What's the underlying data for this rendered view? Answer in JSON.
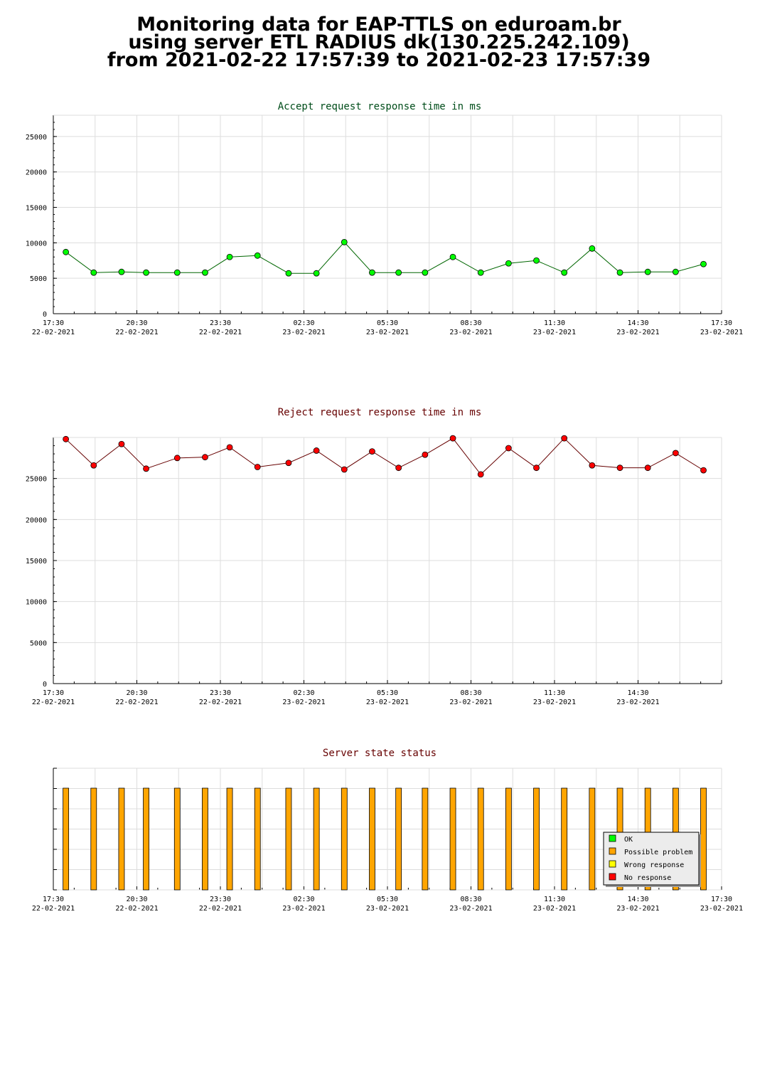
{
  "header": {
    "line1": "Monitoring data for EAP-TTLS on eduroam.br",
    "line2": "using server ETL RADIUS dk(130.225.242.109)",
    "line3": "from 2021-02-22 17:57:39 to 2021-02-23 17:57:39"
  },
  "colors": {
    "grid": "#dddddd",
    "accept_marker": "#00ff00",
    "accept_line": "#006600",
    "accept_title": "#004d1a",
    "reject_marker": "#ff0000",
    "reject_line": "#660000",
    "reject_title": "#660000",
    "status_title": "#660000",
    "bar": "#ffa500"
  },
  "chart_data": [
    {
      "type": "line",
      "title": "Accept request response time in ms",
      "ylim": [
        0,
        28000
      ],
      "y_ticks": [
        "0",
        "5000",
        "10000",
        "15000",
        "20000",
        "25000"
      ],
      "x_ticks": [
        {
          "time": "17:30",
          "date": "22-02-2021"
        },
        {
          "time": "20:30",
          "date": "22-02-2021"
        },
        {
          "time": "23:30",
          "date": "22-02-2021"
        },
        {
          "time": "02:30",
          "date": "23-02-2021"
        },
        {
          "time": "05:30",
          "date": "23-02-2021"
        },
        {
          "time": "08:30",
          "date": "23-02-2021"
        },
        {
          "time": "11:30",
          "date": "23-02-2021"
        },
        {
          "time": "14:30",
          "date": "23-02-2021"
        },
        {
          "time": "17:30",
          "date": "23-02-2021"
        }
      ],
      "grid": true,
      "series": [
        {
          "x": [
            "2021-02-22 17:57",
            "2021-02-22 18:57",
            "2021-02-22 19:57",
            "2021-02-22 20:50",
            "2021-02-22 21:57",
            "2021-02-22 22:57",
            "2021-02-22 23:50",
            "2021-02-23 00:50",
            "2021-02-23 01:57",
            "2021-02-23 02:57",
            "2021-02-23 03:57",
            "2021-02-23 04:57",
            "2021-02-23 05:54",
            "2021-02-23 06:51",
            "2021-02-23 07:51",
            "2021-02-23 08:51",
            "2021-02-23 09:51",
            "2021-02-23 10:51",
            "2021-02-23 11:51",
            "2021-02-23 12:51",
            "2021-02-23 13:51",
            "2021-02-23 14:51",
            "2021-02-23 15:51",
            "2021-02-23 16:51"
          ],
          "values": [
            8700,
            5800,
            5900,
            5800,
            5800,
            5800,
            8000,
            8200,
            5700,
            5700,
            10100,
            5800,
            5800,
            5800,
            8000,
            5800,
            7100,
            7500,
            5800,
            9200,
            5800,
            5900,
            5900,
            7000
          ]
        }
      ]
    },
    {
      "type": "line",
      "title": "Reject request response time in ms",
      "ylim": [
        0,
        30000
      ],
      "y_ticks": [
        "0",
        "5000",
        "10000",
        "15000",
        "20000",
        "25000"
      ],
      "x_ticks": [
        {
          "time": "17:30",
          "date": "22-02-2021"
        },
        {
          "time": "20:30",
          "date": "22-02-2021"
        },
        {
          "time": "23:30",
          "date": "22-02-2021"
        },
        {
          "time": "02:30",
          "date": "23-02-2021"
        },
        {
          "time": "05:30",
          "date": "23-02-2021"
        },
        {
          "time": "08:30",
          "date": "23-02-2021"
        },
        {
          "time": "11:30",
          "date": "23-02-2021"
        },
        {
          "time": "14:30",
          "date": "23-02-2021"
        }
      ],
      "grid": true,
      "series": [
        {
          "x": [
            "2021-02-22 17:57",
            "2021-02-22 18:57",
            "2021-02-22 19:57",
            "2021-02-22 20:50",
            "2021-02-22 21:57",
            "2021-02-22 22:57",
            "2021-02-22 23:50",
            "2021-02-23 00:50",
            "2021-02-23 01:57",
            "2021-02-23 02:57",
            "2021-02-23 03:57",
            "2021-02-23 04:57",
            "2021-02-23 05:54",
            "2021-02-23 06:51",
            "2021-02-23 07:51",
            "2021-02-23 08:51",
            "2021-02-23 09:51",
            "2021-02-23 10:51",
            "2021-02-23 11:51",
            "2021-02-23 12:51",
            "2021-02-23 13:51",
            "2021-02-23 14:51",
            "2021-02-23 15:51",
            "2021-02-23 16:51"
          ],
          "values": [
            29800,
            26600,
            29200,
            26200,
            27500,
            27600,
            28800,
            26400,
            26900,
            28400,
            26100,
            28300,
            26300,
            27900,
            29900,
            25500,
            28700,
            26300,
            29900,
            26600,
            26300,
            26300,
            28100,
            26000
          ]
        }
      ]
    },
    {
      "type": "bar",
      "title": "Server state status",
      "x_ticks": [
        {
          "time": "17:30",
          "date": "22-02-2021"
        },
        {
          "time": "20:30",
          "date": "22-02-2021"
        },
        {
          "time": "23:30",
          "date": "22-02-2021"
        },
        {
          "time": "02:30",
          "date": "23-02-2021"
        },
        {
          "time": "05:30",
          "date": "23-02-2021"
        },
        {
          "time": "08:30",
          "date": "23-02-2021"
        },
        {
          "time": "11:30",
          "date": "23-02-2021"
        },
        {
          "time": "14:30",
          "date": "23-02-2021"
        },
        {
          "time": "17:30",
          "date": "23-02-2021"
        }
      ],
      "grid": true,
      "legend_position": "bottom-right",
      "legend": [
        {
          "label": "OK",
          "color": "#00ff00"
        },
        {
          "label": "Possible problem",
          "color": "#ffa500"
        },
        {
          "label": "Wrong response",
          "color": "#ffff00"
        },
        {
          "label": "No response",
          "color": "#ff0000"
        }
      ],
      "series": [
        {
          "name": "Possible problem",
          "x": [
            "2021-02-22 17:57",
            "2021-02-22 18:57",
            "2021-02-22 19:57",
            "2021-02-22 20:50",
            "2021-02-22 21:57",
            "2021-02-22 22:57",
            "2021-02-22 23:50",
            "2021-02-23 00:50",
            "2021-02-23 01:57",
            "2021-02-23 02:57",
            "2021-02-23 03:57",
            "2021-02-23 04:57",
            "2021-02-23 05:54",
            "2021-02-23 06:51",
            "2021-02-23 07:51",
            "2021-02-23 08:51",
            "2021-02-23 09:51",
            "2021-02-23 10:51",
            "2021-02-23 11:51",
            "2021-02-23 12:51",
            "2021-02-23 13:51",
            "2021-02-23 14:51",
            "2021-02-23 15:51",
            "2021-02-23 16:51"
          ],
          "values": [
            1,
            1,
            1,
            1,
            1,
            1,
            1,
            1,
            1,
            1,
            1,
            1,
            1,
            1,
            1,
            1,
            1,
            1,
            1,
            1,
            1,
            1,
            1,
            1
          ]
        }
      ]
    }
  ]
}
